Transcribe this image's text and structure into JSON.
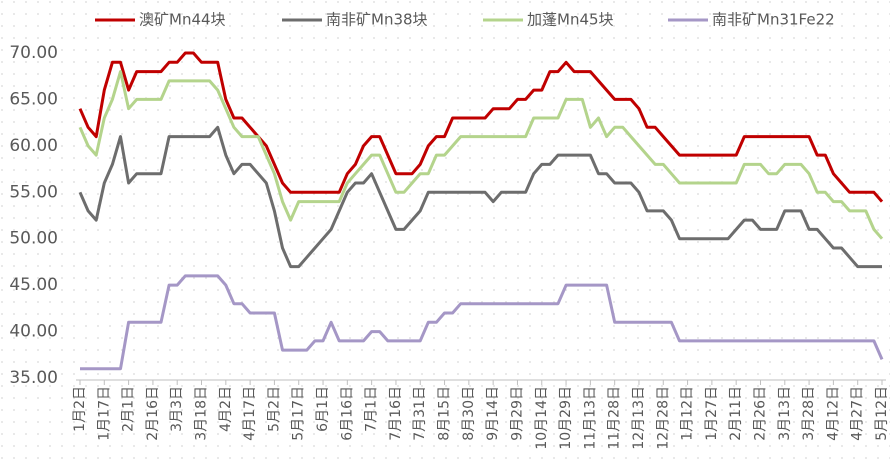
{
  "chart_data": {
    "type": "line",
    "categories": [
      "1月2日",
      null,
      null,
      "1月17日",
      null,
      null,
      "2月1日",
      null,
      null,
      "2月16日",
      null,
      null,
      "3月3日",
      null,
      null,
      "3月18日",
      null,
      null,
      "4月2日",
      null,
      null,
      "4月17日",
      null,
      null,
      "5月2日",
      null,
      null,
      "5月17日",
      null,
      null,
      "6月1日",
      null,
      null,
      "6月16日",
      null,
      null,
      "7月1日",
      null,
      null,
      "7月16日",
      null,
      null,
      "7月31日",
      null,
      null,
      "8月15日",
      null,
      null,
      "8月30日",
      null,
      null,
      "9月14日",
      null,
      null,
      "9月29日",
      null,
      null,
      "10月14日",
      null,
      null,
      "10月29日",
      null,
      null,
      "11月13日",
      null,
      null,
      "11月28日",
      null,
      null,
      "12月13日",
      null,
      null,
      "12月28日",
      null,
      null,
      "1月12日",
      null,
      null,
      "1月27日",
      null,
      null,
      "2月11日",
      null,
      null,
      "2月26日",
      null,
      null,
      "3月13日",
      null,
      null,
      "3月28日",
      null,
      null,
      "4月12日",
      null,
      null,
      "4月27日",
      null,
      null,
      "5月12日"
    ],
    "series": [
      {
        "name": "澳矿Mn44块",
        "color": "#c00000",
        "values": [
          64,
          62,
          61,
          66,
          69,
          69,
          66,
          68,
          68,
          68,
          68,
          69,
          69,
          70,
          70,
          69,
          69,
          69,
          65,
          63,
          63,
          62,
          61,
          60,
          58,
          56,
          55,
          55,
          55,
          55,
          55,
          55,
          55,
          57,
          58,
          60,
          61,
          61,
          59,
          57,
          57,
          57,
          58,
          60,
          61,
          61,
          63,
          63,
          63,
          63,
          63,
          64,
          64,
          64,
          65,
          65,
          66,
          66,
          68,
          68,
          69,
          68,
          68,
          68,
          67,
          66,
          65,
          65,
          65,
          64,
          62,
          62,
          61,
          60,
          59,
          59,
          59,
          59,
          59,
          59,
          59,
          59,
          61,
          61,
          61,
          61,
          61,
          61,
          61,
          61,
          61,
          59,
          59,
          57,
          56,
          55,
          55,
          55,
          55,
          54
        ]
      },
      {
        "name": "南非矿Mn38块",
        "color": "#6d6d6d",
        "values": [
          55,
          53,
          52,
          56,
          58,
          61,
          56,
          57,
          57,
          57,
          57,
          61,
          61,
          61,
          61,
          61,
          61,
          62,
          59,
          57,
          58,
          58,
          57,
          56,
          53,
          49,
          47,
          47,
          48,
          49,
          50,
          51,
          53,
          55,
          56,
          56,
          57,
          55,
          53,
          51,
          51,
          52,
          53,
          55,
          55,
          55,
          55,
          55,
          55,
          55,
          55,
          54,
          55,
          55,
          55,
          55,
          57,
          58,
          58,
          59,
          59,
          59,
          59,
          59,
          57,
          57,
          56,
          56,
          56,
          55,
          53,
          53,
          53,
          52,
          50,
          50,
          50,
          50,
          50,
          50,
          50,
          51,
          52,
          52,
          51,
          51,
          51,
          53,
          53,
          53,
          51,
          51,
          50,
          49,
          49,
          48,
          47,
          47,
          47,
          47
        ]
      },
      {
        "name": "加蓬Mn45块",
        "color": "#b4d48c",
        "values": [
          62,
          60,
          59,
          63,
          65,
          68,
          64,
          65,
          65,
          65,
          65,
          67,
          67,
          67,
          67,
          67,
          67,
          66,
          64,
          62,
          61,
          61,
          61,
          59,
          57,
          54,
          52,
          54,
          54,
          54,
          54,
          54,
          54,
          56,
          57,
          58,
          59,
          59,
          57,
          55,
          55,
          56,
          57,
          57,
          59,
          59,
          60,
          61,
          61,
          61,
          61,
          61,
          61,
          61,
          61,
          61,
          63,
          63,
          63,
          63,
          65,
          65,
          65,
          62,
          63,
          61,
          62,
          62,
          61,
          60,
          59,
          58,
          58,
          57,
          56,
          56,
          56,
          56,
          56,
          56,
          56,
          56,
          58,
          58,
          58,
          57,
          57,
          58,
          58,
          58,
          57,
          55,
          55,
          54,
          54,
          53,
          53,
          53,
          51,
          50
        ]
      },
      {
        "name": "南非矿Mn31Fe22",
        "color": "#a597c6",
        "values": [
          36,
          36,
          36,
          36,
          36,
          36,
          41,
          41,
          41,
          41,
          41,
          45,
          45,
          46,
          46,
          46,
          46,
          46,
          45,
          43,
          43,
          42,
          42,
          42,
          42,
          38,
          38,
          38,
          38,
          39,
          39,
          41,
          39,
          39,
          39,
          39,
          40,
          40,
          39,
          39,
          39,
          39,
          39,
          41,
          41,
          42,
          42,
          43,
          43,
          43,
          43,
          43,
          43,
          43,
          43,
          43,
          43,
          43,
          43,
          43,
          45,
          45,
          45,
          45,
          45,
          45,
          41,
          41,
          41,
          41,
          41,
          41,
          41,
          41,
          39,
          39,
          39,
          39,
          39,
          39,
          39,
          39,
          39,
          39,
          39,
          39,
          39,
          39,
          39,
          39,
          39,
          39,
          39,
          39,
          39,
          39,
          39,
          39,
          39,
          37
        ]
      }
    ],
    "ylim": [
      35,
      70
    ],
    "yticks": [
      {
        "value": 35,
        "label": "35.00"
      },
      {
        "value": 40,
        "label": "40.00"
      },
      {
        "value": 45,
        "label": "45.00"
      },
      {
        "value": 50,
        "label": "50.00"
      },
      {
        "value": 55,
        "label": "55.00"
      },
      {
        "value": 60,
        "label": "60.00"
      },
      {
        "value": 65,
        "label": "65.00"
      },
      {
        "value": 70,
        "label": "70.00"
      }
    ],
    "legend": "top"
  }
}
